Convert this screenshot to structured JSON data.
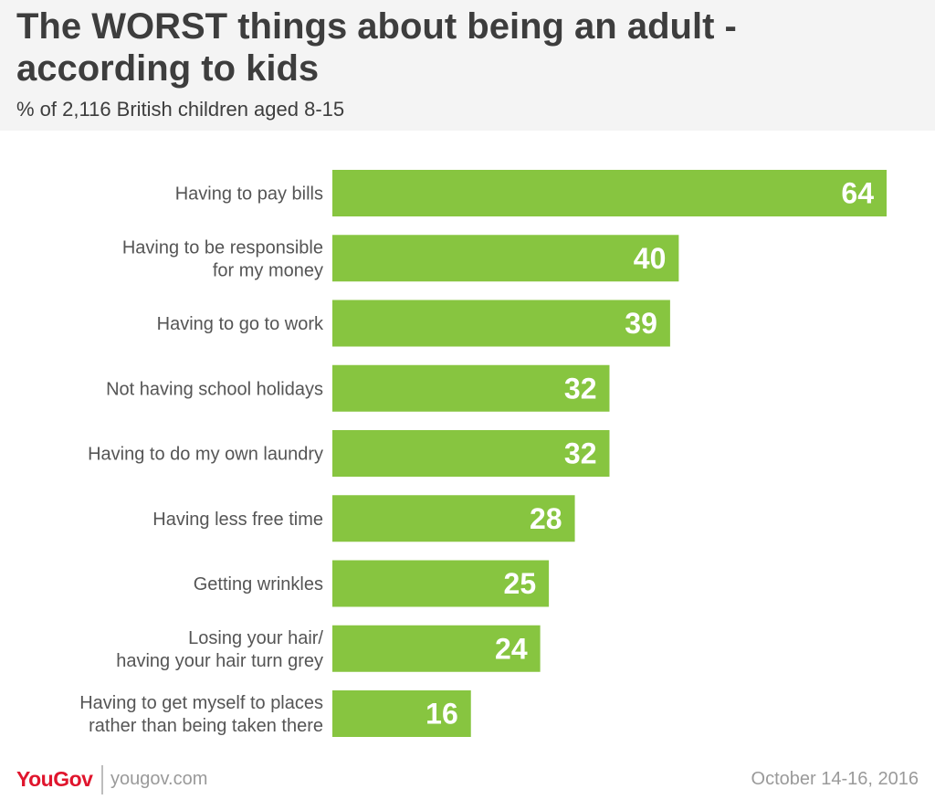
{
  "header": {
    "title": "The WORST things about being an adult - according to kids",
    "subtitle": "% of 2,116 British children aged 8-15"
  },
  "chart_data": {
    "type": "bar",
    "orientation": "horizontal",
    "categories": [
      [
        "Having to pay bills"
      ],
      [
        "Having to be responsible",
        "for my money"
      ],
      [
        "Having to go to work"
      ],
      [
        "Not having school holidays"
      ],
      [
        "Having to do my own laundry"
      ],
      [
        "Having less free time"
      ],
      [
        "Getting wrinkles"
      ],
      [
        "Losing your hair/",
        "having your hair turn grey"
      ],
      [
        "Having to get myself to places",
        "rather than being taken there"
      ]
    ],
    "values": [
      64,
      40,
      39,
      32,
      32,
      28,
      25,
      24,
      16
    ],
    "xlim": [
      0,
      64
    ],
    "bar_color": "#87c540",
    "label_color": "#ffffff",
    "category_color": "#555555",
    "grid": false,
    "legend": false
  },
  "footer": {
    "brand": "YouGov",
    "website": "yougov.com",
    "date": "October 14-16, 2016"
  },
  "colors": {
    "brand": "#e0152d",
    "header_bg": "#f4f4f4",
    "title": "#3d3d3d",
    "muted": "#9a9a9a"
  }
}
